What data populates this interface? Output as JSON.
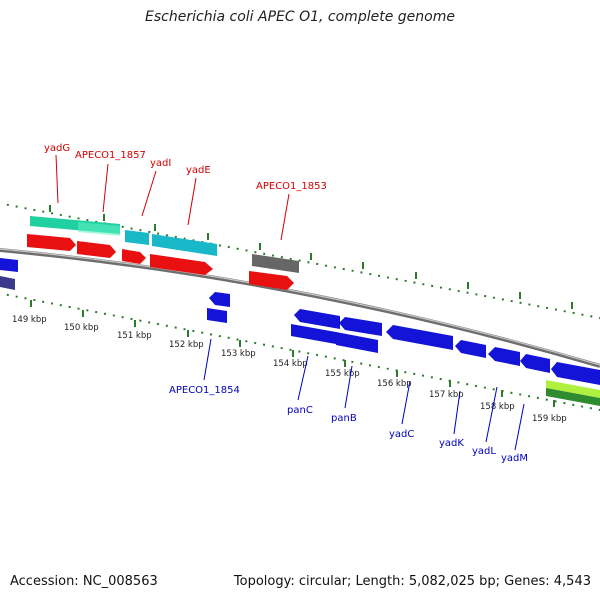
{
  "header": {
    "title": "Escherichia coli APEC O1, complete genome"
  },
  "footer": {
    "accession": "Accession: NC_008563",
    "stats": "Topology: circular; Length: 5,082,025 bp; Genes: 4,543"
  },
  "colors": {
    "top_gene_label": "#d40000",
    "bottom_gene_label": "#0000c0",
    "cds_red": "#e81010",
    "cds_blue": "#1414d8",
    "cds_cyan": "#18b8c8",
    "cds_teal": "#20d0a0",
    "cds_gray": "#666666",
    "cds_green": "#2e8b2e",
    "cds_yellowgreen": "#b0f040",
    "backbone": "#888888",
    "tick_green": "#2c7a2c"
  },
  "scale": {
    "ticks": [
      "149 kbp",
      "150 kbp",
      "151 kbp",
      "152 kbp",
      "153 kbp",
      "154 kbp",
      "155 kbp",
      "156 kbp",
      "157 kbp",
      "158 kbp",
      "159 kbp"
    ]
  },
  "genes": {
    "top": [
      "yadG",
      "APECO1_1857",
      "yadI",
      "yadE",
      "APECO1_1853"
    ],
    "bottom": [
      "APECO1_1854",
      "panC",
      "panB",
      "yadC",
      "yadK",
      "yadL",
      "yadM"
    ]
  }
}
